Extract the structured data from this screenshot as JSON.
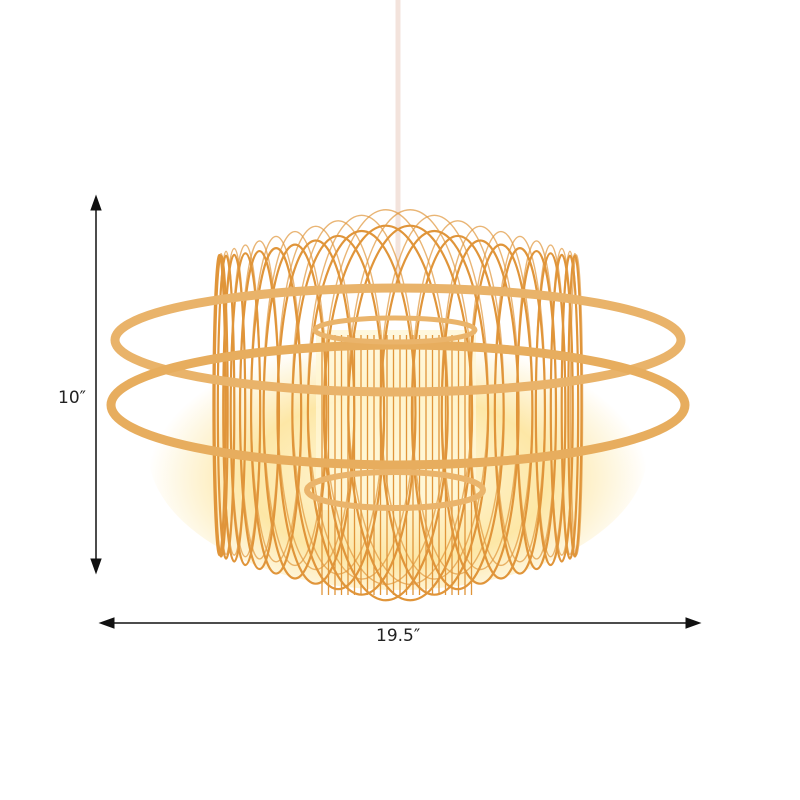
{
  "product": {
    "height_label": "10″",
    "width_label": "19.5″"
  },
  "colors": {
    "wire": "#e0953a",
    "band": "#e9b36a",
    "glow": "#fff3c0",
    "cord": "#f3e3dc",
    "dimension_line": "#111111"
  }
}
